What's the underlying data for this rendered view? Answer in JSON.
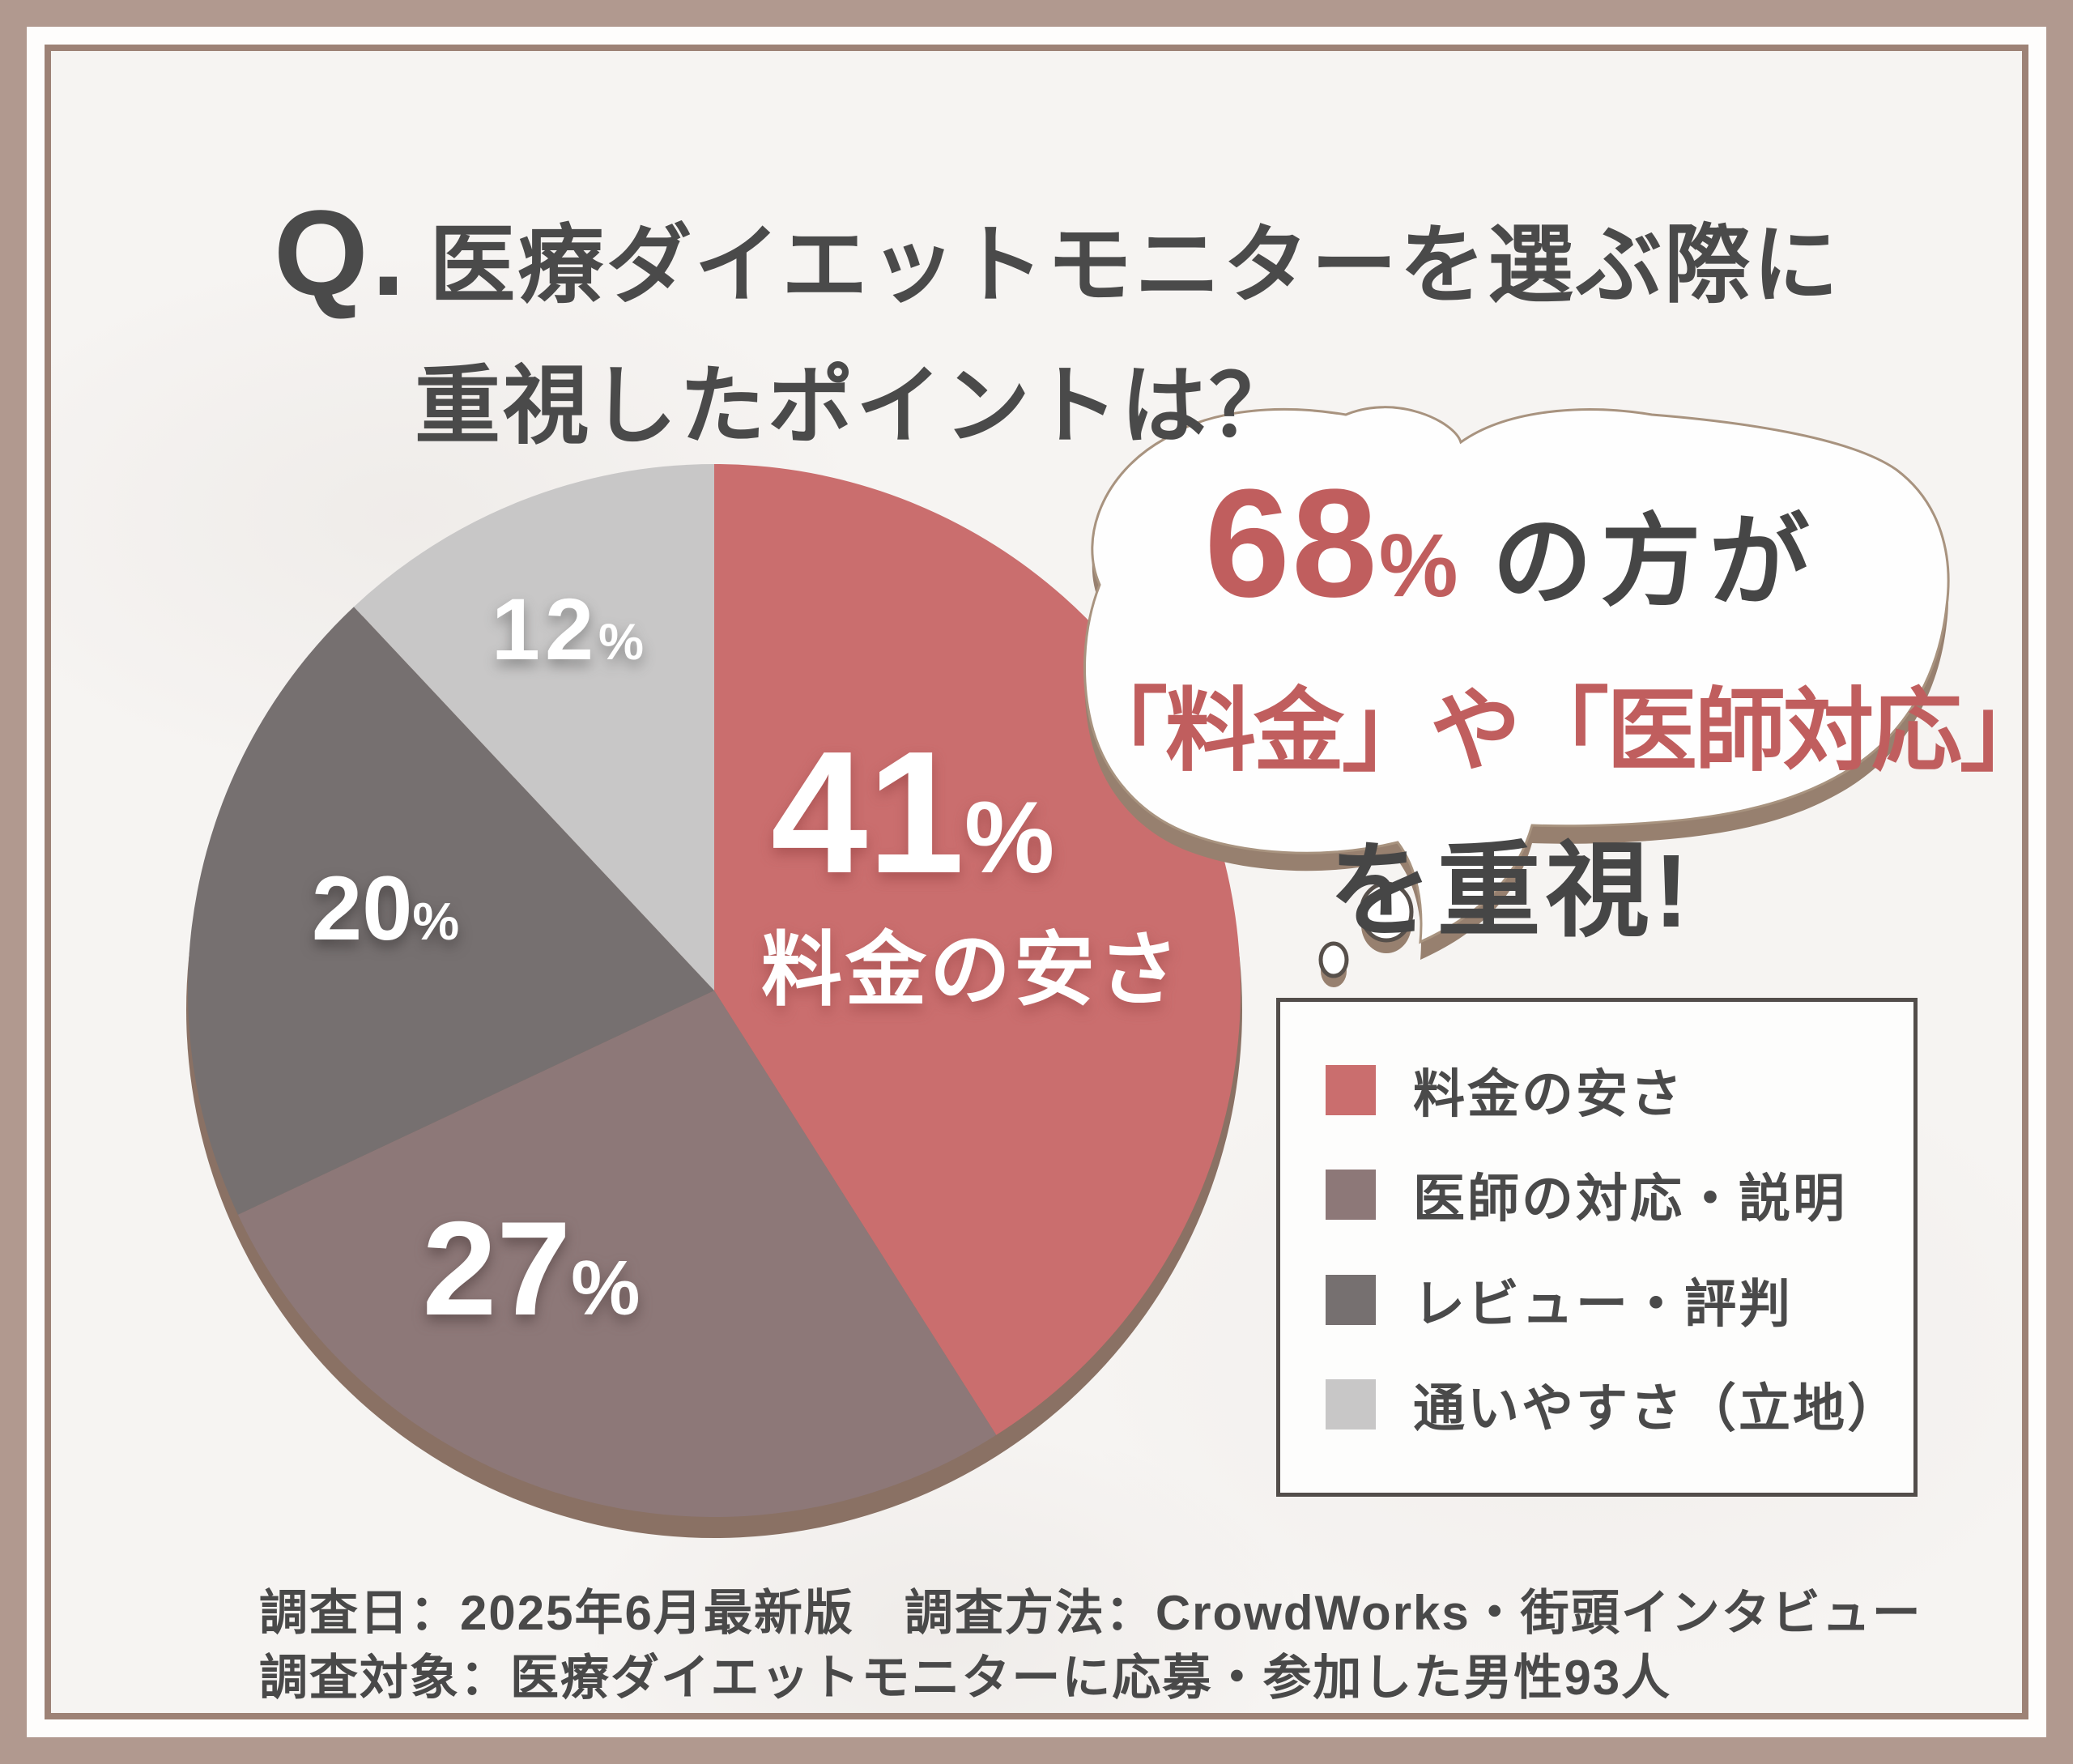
{
  "title": {
    "prefix": "Q.",
    "line1": "医療ダイエットモニターを選ぶ際に",
    "line2": "重視したポイントは？"
  },
  "bubble": {
    "percent": "68",
    "percent_sign": "%",
    "suffix": "の方が",
    "line2": "「料金」や「医師対応」",
    "line3": "を重視!"
  },
  "chart_data": {
    "type": "pie",
    "title": "医療ダイエットモニターを選ぶ際に重視したポイント",
    "categories": [
      "料金の安さ",
      "医師の対応・説明",
      "レビュー・評判",
      "通いやすさ（立地）"
    ],
    "values": [
      41,
      27,
      20,
      12
    ],
    "unit": "%",
    "colors": [
      "#ca6e6e",
      "#8d7878",
      "#767070",
      "#c8c7c7"
    ],
    "start_angle_deg": 0,
    "direction": "clockwise",
    "inner_label_category": "料金の安さ",
    "legend_position": "right",
    "highlight_note": "68%の方が「料金」や「医師対応」を重視!"
  },
  "legend": {
    "items": [
      {
        "label": "料金の安さ",
        "color": "#ca6e6e"
      },
      {
        "label": "医師の対応・説明",
        "color": "#8d7878"
      },
      {
        "label": "レビュー・評判",
        "color": "#767070"
      },
      {
        "label": "通いやすさ（立地）",
        "color": "#c8c7c7"
      }
    ]
  },
  "footer": {
    "line1": "調査日：2025年6月最新版　調査方法：CrowdWorks・街頭インタビュー",
    "line2": "調査対象：医療ダイエットモニターに応募・参加した男性93人"
  },
  "colors": {
    "accent_salmon": "#c05e5e",
    "text_dark": "#4a4a4a",
    "frame_band": "#b1998f",
    "frame_line": "#9d8276",
    "content_bg": "#f6f4f2",
    "pie_shadow": "#8a7164",
    "bubble_shadow": "#97806f",
    "legend_border": "#524d4a"
  }
}
